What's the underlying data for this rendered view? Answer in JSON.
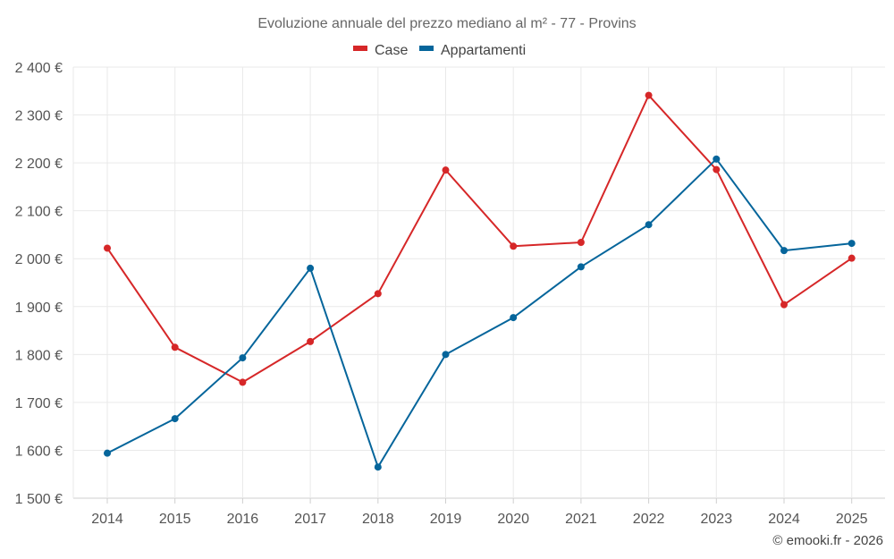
{
  "chart_data": {
    "type": "line",
    "title": "Evoluzione annuale del prezzo mediano al m² - 77 - Provins",
    "categories": [
      "2014",
      "2015",
      "2016",
      "2017",
      "2018",
      "2019",
      "2020",
      "2021",
      "2022",
      "2023",
      "2024",
      "2025"
    ],
    "y_tick_labels": [
      "1 500 €",
      "1 600 €",
      "1 700 €",
      "1 800 €",
      "1 900 €",
      "2 000 €",
      "2 100 €",
      "2 200 €",
      "2 300 €",
      "2 400 €"
    ],
    "y_ticks": [
      1500,
      1600,
      1700,
      1800,
      1900,
      2000,
      2100,
      2200,
      2300,
      2400
    ],
    "ylim": [
      1500,
      2400
    ],
    "grid": true,
    "legend_position": "top-center",
    "series": [
      {
        "name": "Case",
        "color": "#d62728",
        "values": [
          2022,
          1815,
          1742,
          1827,
          1927,
          2185,
          2026,
          2034,
          2341,
          2186,
          1904,
          2001
        ]
      },
      {
        "name": "Appartamenti",
        "color": "#05659b",
        "values": [
          1594,
          1666,
          1793,
          1980,
          1565,
          1800,
          1877,
          1983,
          2071,
          2208,
          2017,
          2032
        ]
      }
    ],
    "credit": "© emooki.fr - 2026"
  }
}
